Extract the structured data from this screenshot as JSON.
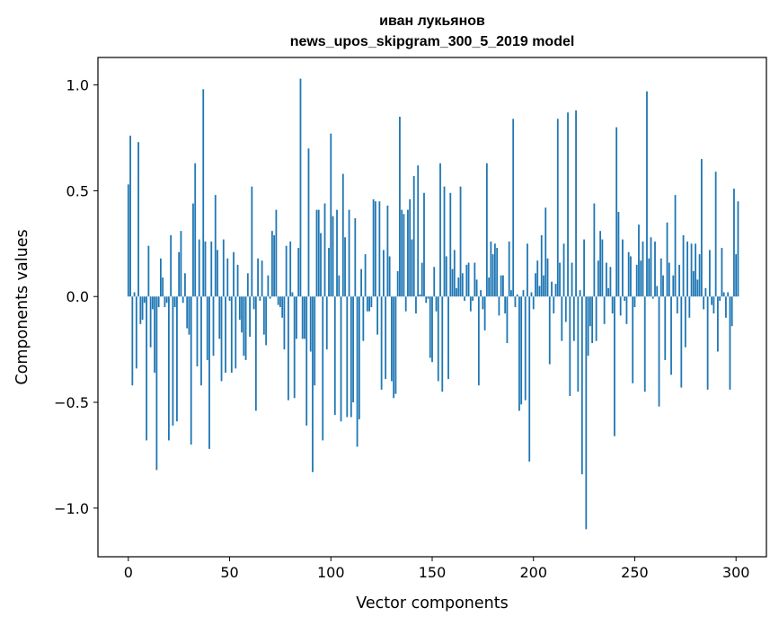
{
  "chart_data": {
    "type": "bar",
    "title_lines": [
      "иван лукьянов",
      "news_upos_skipgram_300_5_2019 model"
    ],
    "xlabel": "Vector components",
    "ylabel": "Components values",
    "xlim": [
      -15,
      315
    ],
    "ylim": [
      -1.23,
      1.13
    ],
    "xticks": [
      0,
      50,
      100,
      150,
      200,
      250,
      300
    ],
    "xtick_labels": [
      "0",
      "50",
      "100",
      "150",
      "200",
      "250",
      "300"
    ],
    "yticks": [
      -1.0,
      -0.5,
      0.0,
      0.5,
      1.0
    ],
    "ytick_labels": [
      "−1.0",
      "−0.5",
      "0.0",
      "0.5",
      "1.0"
    ],
    "bar_color": "#1f77b4",
    "bar_width": 0.8,
    "values": [
      0.53,
      0.76,
      -0.42,
      0.02,
      -0.34,
      0.73,
      -0.13,
      -0.11,
      -0.03,
      -0.68,
      0.24,
      -0.24,
      -0.06,
      -0.36,
      -0.82,
      -0.05,
      0.18,
      0.09,
      -0.05,
      -0.03,
      -0.68,
      0.29,
      -0.61,
      -0.05,
      -0.59,
      0.21,
      0.31,
      -0.03,
      0.11,
      -0.15,
      -0.18,
      -0.7,
      0.44,
      0.63,
      -0.33,
      0.27,
      -0.42,
      0.98,
      0.26,
      -0.3,
      -0.72,
      0.26,
      -0.28,
      0.48,
      0.22,
      -0.2,
      -0.4,
      0.27,
      -0.36,
      0.18,
      -0.02,
      -0.36,
      0.21,
      -0.34,
      0.15,
      -0.11,
      -0.17,
      -0.28,
      -0.3,
      0.11,
      -0.19,
      0.52,
      -0.06,
      -0.54,
      0.18,
      -0.02,
      0.17,
      -0.18,
      -0.23,
      0.1,
      -0.01,
      0.31,
      0.29,
      0.41,
      -0.04,
      -0.05,
      -0.1,
      -0.25,
      0.24,
      -0.49,
      0.26,
      0.02,
      -0.48,
      -0.2,
      0.23,
      1.03,
      -0.2,
      -0.2,
      -0.61,
      0.7,
      -0.26,
      -0.83,
      -0.42,
      0.41,
      0.41,
      0.3,
      -0.68,
      0.44,
      -0.25,
      0.23,
      0.77,
      0.38,
      -0.56,
      0.41,
      0.1,
      -0.59,
      0.58,
      0.28,
      -0.57,
      0.41,
      -0.57,
      -0.5,
      0.37,
      -0.71,
      -0.58,
      0.13,
      -0.21,
      0.2,
      -0.07,
      -0.07,
      -0.05,
      0.46,
      0.45,
      -0.18,
      0.45,
      -0.44,
      0.22,
      -0.39,
      0.43,
      0.19,
      -0.4,
      -0.48,
      -0.46,
      0.12,
      0.85,
      0.41,
      0.39,
      -0.07,
      0.41,
      0.46,
      0.27,
      0.57,
      -0.08,
      0.62,
      0.01,
      0.16,
      0.49,
      -0.03,
      -0.01,
      -0.29,
      -0.31,
      0.14,
      -0.07,
      -0.4,
      0.63,
      -0.45,
      0.52,
      0.19,
      -0.39,
      0.49,
      0.13,
      0.22,
      0.04,
      0.09,
      0.52,
      0.11,
      -0.02,
      0.15,
      0.16,
      -0.07,
      -0.02,
      0.16,
      0.08,
      -0.42,
      0.03,
      -0.06,
      -0.16,
      0.63,
      0.09,
      0.26,
      0.2,
      0.25,
      0.23,
      -0.09,
      0.1,
      0.1,
      -0.08,
      -0.22,
      0.26,
      0.03,
      0.84,
      -0.05,
      0.01,
      -0.54,
      -0.51,
      0.03,
      -0.49,
      0.25,
      -0.78,
      0.02,
      -0.06,
      0.11,
      0.17,
      0.05,
      0.29,
      0.1,
      0.42,
      0.18,
      -0.32,
      0.07,
      -0.08,
      0.06,
      0.84,
      0.16,
      -0.21,
      0.25,
      -0.12,
      0.87,
      -0.47,
      0.16,
      -0.21,
      0.88,
      -0.45,
      0.03,
      -0.84,
      0.27,
      -1.1,
      -0.28,
      -0.14,
      -0.22,
      0.44,
      -0.21,
      0.17,
      0.31,
      0.27,
      -0.13,
      0.16,
      0.04,
      0.14,
      -0.08,
      -0.66,
      0.8,
      0.4,
      -0.09,
      0.27,
      -0.02,
      -0.13,
      0.21,
      0.19,
      -0.41,
      -0.05,
      0.15,
      0.34,
      0.17,
      0.26,
      -0.45,
      0.97,
      0.18,
      0.28,
      -0.01,
      0.26,
      0.05,
      -0.52,
      0.18,
      0.1,
      -0.3,
      0.35,
      0.16,
      -0.37,
      0.1,
      0.48,
      -0.08,
      0.15,
      -0.43,
      0.29,
      -0.24,
      0.26,
      -0.1,
      0.25,
      0.12,
      0.25,
      0.08,
      0.2,
      0.65,
      -0.06,
      0.04,
      -0.44,
      0.22,
      -0.04,
      -0.08,
      0.59,
      -0.26,
      -0.02,
      0.23,
      0.02,
      -0.1,
      0.02,
      -0.44,
      -0.14,
      0.51,
      0.2,
      0.45
    ]
  }
}
